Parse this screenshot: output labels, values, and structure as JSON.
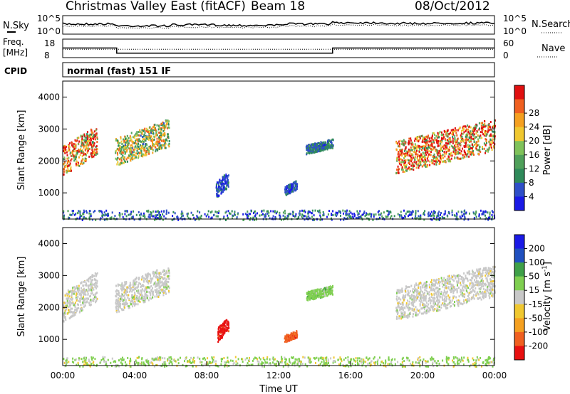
{
  "header": {
    "title": "Christmas Valley East (fitACF)",
    "beam": "Beam 18",
    "date": "08/Oct/2012"
  },
  "noise_panel": {
    "left_label": "N.Sky",
    "right_label": "N.Search",
    "left_ticks": [
      "10^5",
      "10^0"
    ],
    "right_ticks": [
      "10^5",
      "10^0"
    ]
  },
  "freq_panel": {
    "left_label_line1": "Freq.",
    "left_label_line2": "[MHz]",
    "right_label": "Nave",
    "left_ticks": [
      "18",
      "8"
    ],
    "right_ticks": [
      "60",
      "0"
    ]
  },
  "cpid": {
    "label": "CPID",
    "value": "normal (fast) 151 IF"
  },
  "colors": {
    "power_scale": [
      "#1a1ae6",
      "#2f4fc8",
      "#2f8a5a",
      "#4fa05a",
      "#7fc25a",
      "#f0c830",
      "#f5a020",
      "#f06020",
      "#e01010"
    ],
    "velocity_scale": [
      "#e81010",
      "#f06020",
      "#f5a020",
      "#f0c830",
      "#c8c8c8",
      "#7fcf50",
      "#3fa048",
      "#2050c0",
      "#1a1ae6"
    ]
  },
  "chart_data": [
    {
      "type": "heatmap",
      "quantity": "Power",
      "ylabel": "Slant Range [km]",
      "ylim": [
        180,
        4500
      ],
      "y_ticks": [
        "1000",
        "2000",
        "3000",
        "4000"
      ],
      "x_range_hours": [
        0,
        24
      ],
      "colorbar_label": "Power [dB]",
      "colorbar_ticks": [
        "4",
        "8",
        "12",
        "16",
        "20",
        "24",
        "28"
      ],
      "scatter_regions": [
        {
          "t_start": 0.0,
          "t_end": 1.9,
          "range_start": 1450,
          "range_end": 3100,
          "peak_db": 28
        },
        {
          "t_start": 2.9,
          "t_end": 5.9,
          "range_start": 1750,
          "range_end": 3300,
          "peak_db": 20
        },
        {
          "t_start": 8.5,
          "t_end": 9.2,
          "range_start": 800,
          "range_end": 1700,
          "peak_db": 6
        },
        {
          "t_start": 12.3,
          "t_end": 13.0,
          "range_start": 900,
          "range_end": 1400,
          "peak_db": 6
        },
        {
          "t_start": 13.5,
          "t_end": 15.0,
          "range_start": 2200,
          "range_end": 2700,
          "peak_db": 8
        },
        {
          "t_start": 18.5,
          "t_end": 24.0,
          "range_start": 1500,
          "range_end": 3300,
          "peak_db": 28
        }
      ]
    },
    {
      "type": "heatmap",
      "quantity": "Velocity",
      "ylabel": "Slant Range [km]",
      "ylim": [
        180,
        4500
      ],
      "y_ticks": [
        "1000",
        "2000",
        "3000",
        "4000"
      ],
      "x_range_hours": [
        0,
        24
      ],
      "xlabel": "Time UT",
      "x_ticks": [
        "00:00",
        "04:00",
        "08:00",
        "12:00",
        "16:00",
        "20:00",
        "00:00"
      ],
      "colorbar_label_main": "Velocity [m s",
      "colorbar_label_sup": "-1",
      "colorbar_label_end": "]",
      "colorbar_ticks": [
        "200",
        "100",
        "50",
        "15",
        "-15",
        "-50",
        "-100",
        "-200"
      ],
      "scatter_regions": [
        {
          "t_start": 0.0,
          "t_end": 1.9,
          "range_start": 1450,
          "range_end": 3100,
          "velocity": -15
        },
        {
          "t_start": 2.9,
          "t_end": 5.9,
          "range_start": 1750,
          "range_end": 3300,
          "velocity": -15
        },
        {
          "t_start": 8.6,
          "t_end": 9.2,
          "range_start": 900,
          "range_end": 1700,
          "velocity": -200
        },
        {
          "t_start": 12.3,
          "t_end": 13.0,
          "range_start": 900,
          "range_end": 1300,
          "velocity": -100
        },
        {
          "t_start": 13.5,
          "t_end": 15.0,
          "range_start": 2200,
          "range_end": 2700,
          "velocity": 15
        },
        {
          "t_start": 18.5,
          "t_end": 24.0,
          "range_start": 1500,
          "range_end": 3300,
          "velocity": -15
        }
      ]
    }
  ],
  "noise_series": {
    "sky_level": [
      0.55,
      0.45,
      0.5,
      0.48,
      0.55,
      0.62,
      0.58,
      0.6
    ],
    "freq_mhz_steps": [
      {
        "t": 0,
        "f": 13.2
      },
      {
        "t": 3,
        "f": 10.4
      },
      {
        "t": 15,
        "f": 13.2
      },
      {
        "t": 24,
        "f": 13.2
      }
    ],
    "nave_level": 0.45
  }
}
